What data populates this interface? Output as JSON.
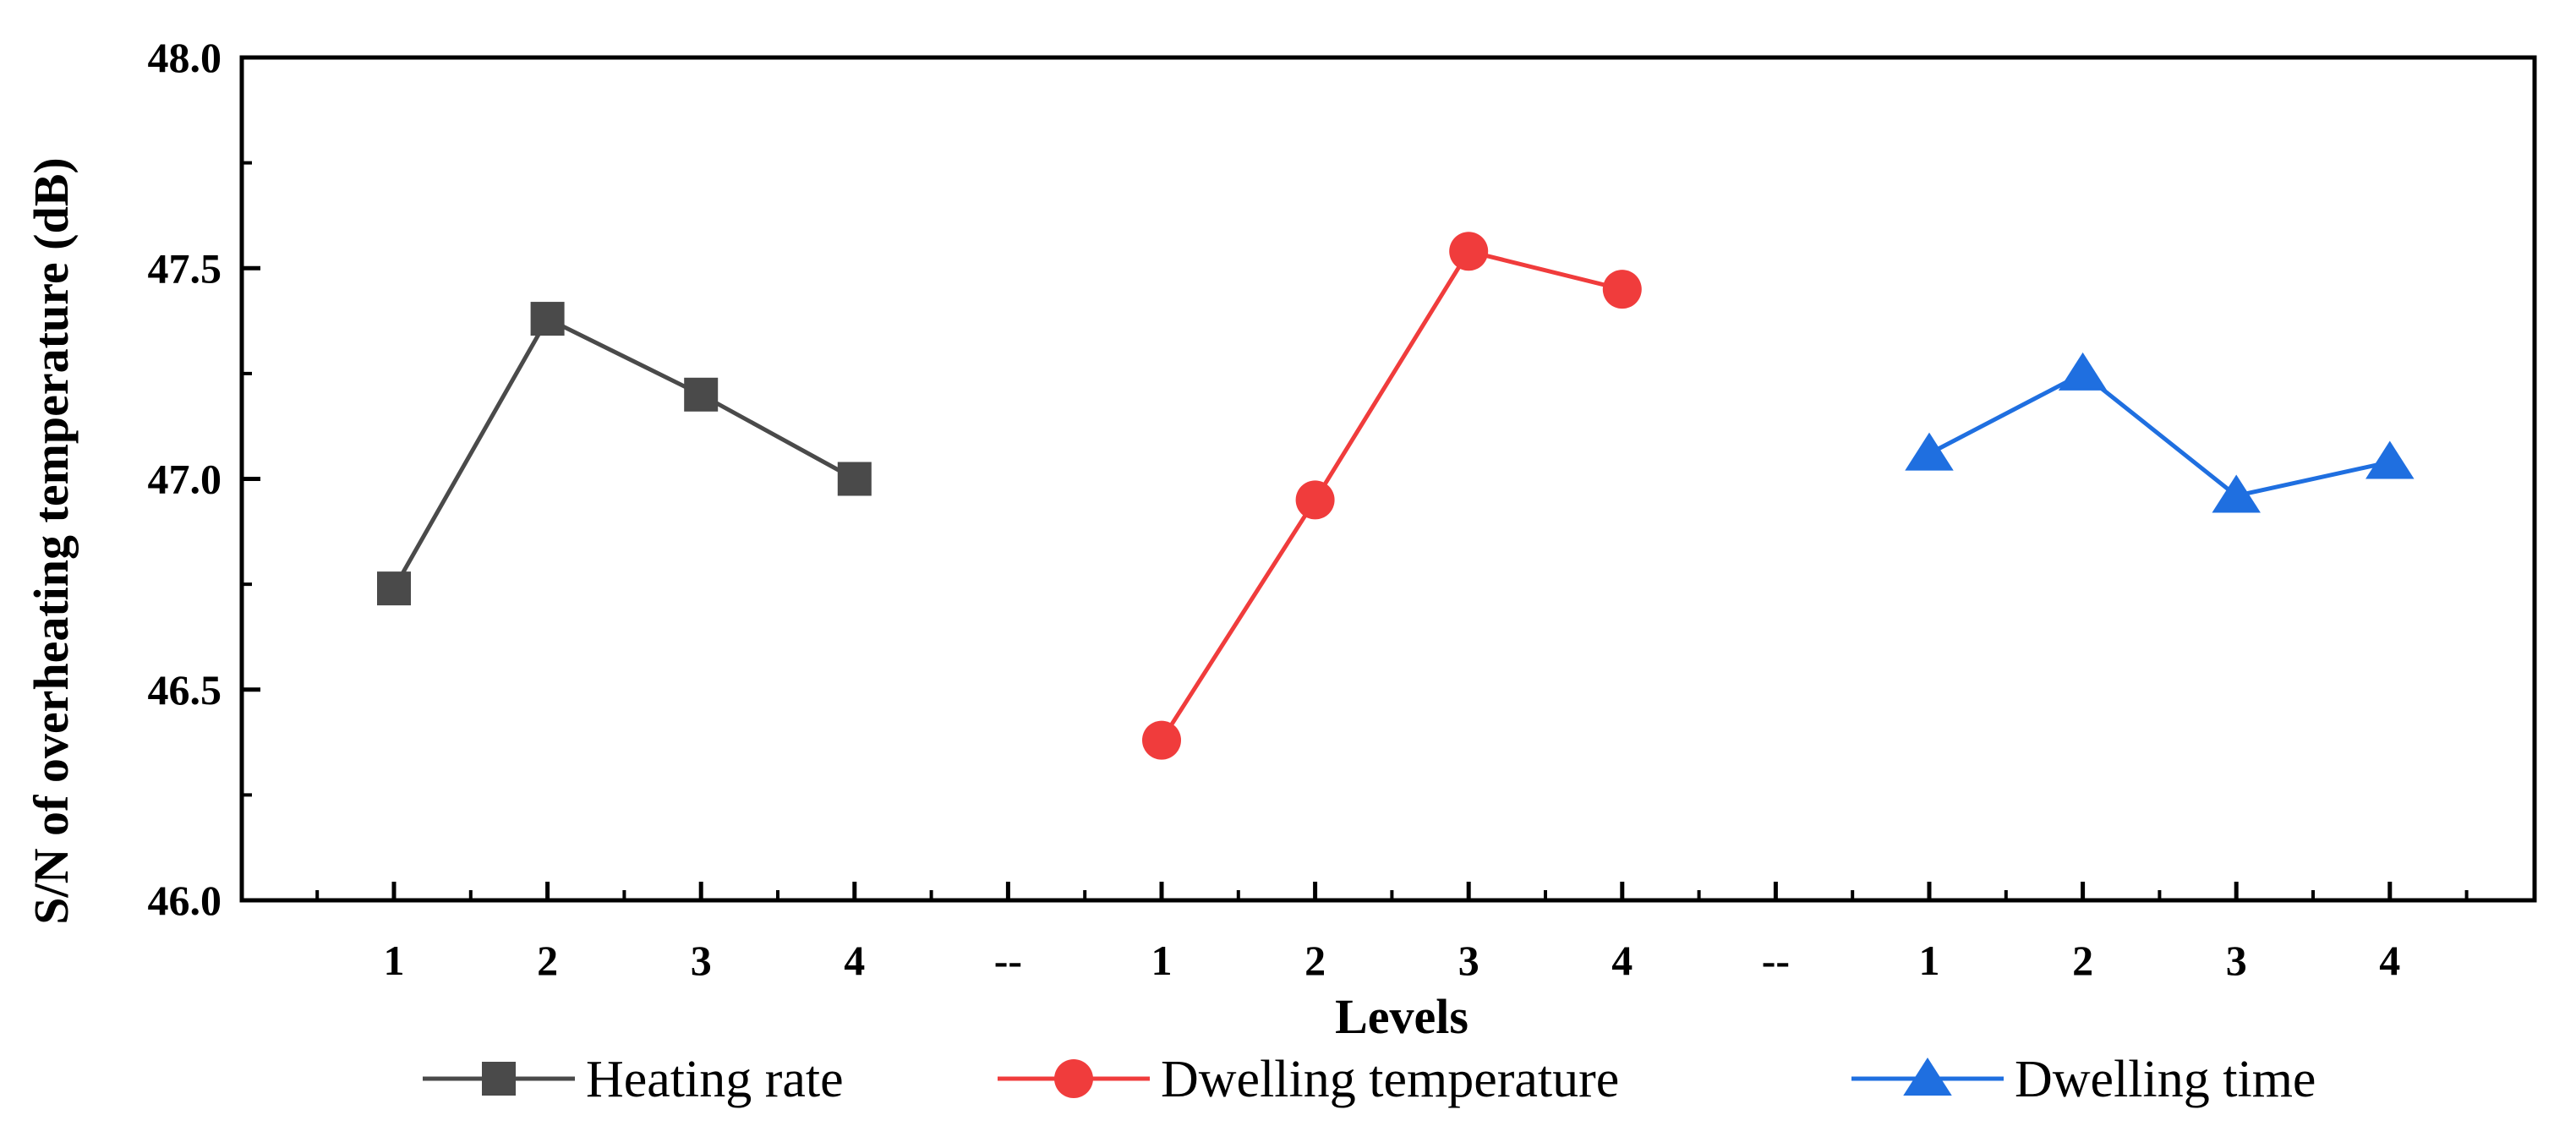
{
  "chart_data": {
    "type": "line",
    "xlabel": "Levels",
    "ylabel": "S/N of overheating temperature (dB)",
    "ylim": [
      46.0,
      48.0
    ],
    "y_ticks": [
      "46.0",
      "46.5",
      "47.0",
      "47.5",
      "48.0"
    ],
    "x_ticks": [
      "1",
      "2",
      "3",
      "4",
      "--",
      "1",
      "2",
      "3",
      "4",
      "--",
      "1",
      "2",
      "3",
      "4"
    ],
    "grid": false,
    "legend_position": "bottom",
    "series": [
      {
        "name": "Heating rate",
        "color": "#4a4a4a",
        "marker": "square",
        "x_index": [
          0,
          1,
          2,
          3
        ],
        "values": [
          46.74,
          47.38,
          47.2,
          47.0
        ]
      },
      {
        "name": "Dwelling temperature",
        "color": "#f03c3c",
        "marker": "circle",
        "x_index": [
          5,
          6,
          7,
          8
        ],
        "values": [
          46.38,
          46.95,
          47.54,
          47.45
        ]
      },
      {
        "name": "Dwelling time",
        "color": "#1f6fe0",
        "marker": "triangle",
        "x_index": [
          10,
          11,
          12,
          13
        ],
        "values": [
          47.06,
          47.25,
          46.96,
          47.04
        ]
      }
    ]
  }
}
